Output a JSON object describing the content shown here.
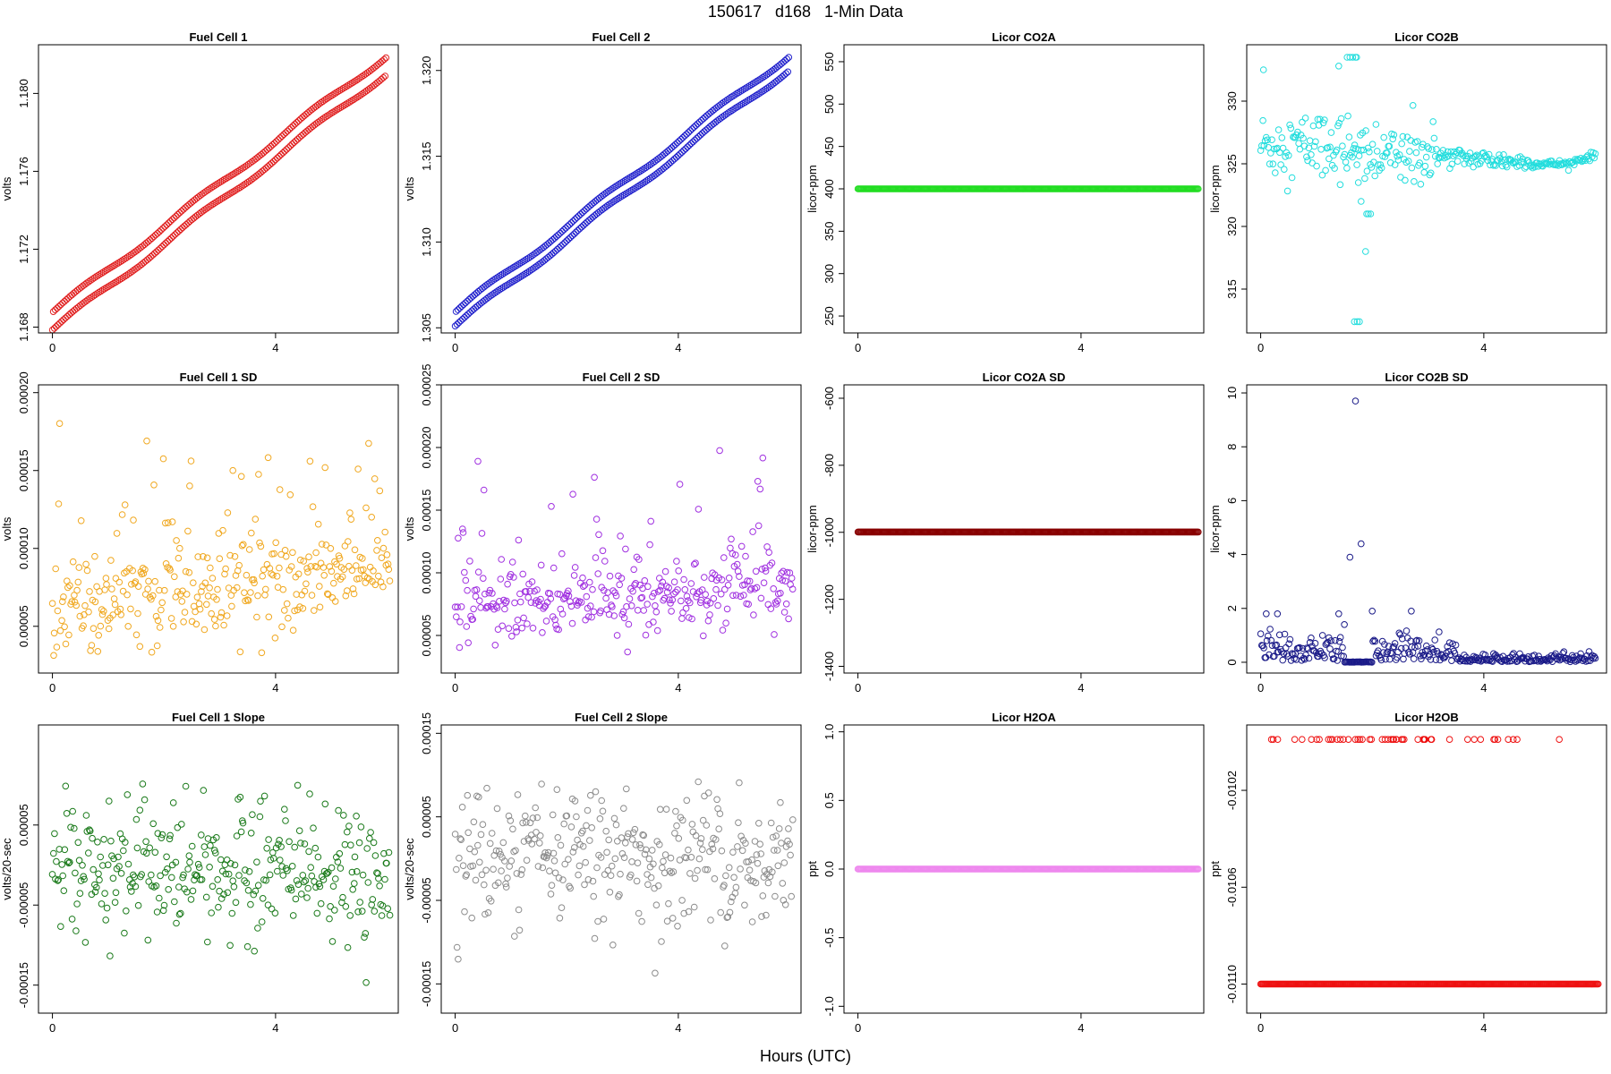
{
  "figure": {
    "title": "150617   d168   1-Min Data",
    "xlabel": "Hours (UTC)"
  },
  "chart_data": [
    {
      "id": "fc1",
      "type": "scatter",
      "title": "Fuel Cell 1",
      "ylabel": "volts",
      "color": "#e02020",
      "xlim": [
        -0.25,
        6.2
      ],
      "xticks": [
        0,
        4
      ],
      "ylim": [
        1.1677,
        1.1825
      ],
      "yticks": [
        1.168,
        1.172,
        1.176,
        1.18
      ],
      "yticklabels": [
        "1.168",
        "1.172",
        "1.176",
        "1.180"
      ],
      "pattern": "double-trend",
      "params": {
        "x0": 0.0,
        "x1": 5.98,
        "n": 360,
        "y0": 1.1683,
        "y1": 1.1815,
        "sep": 0.0009
      },
      "grid": false
    },
    {
      "id": "fc2",
      "type": "scatter",
      "title": "Fuel Cell 2",
      "ylabel": "volts",
      "color": "#2222cc",
      "xlim": [
        -0.25,
        6.2
      ],
      "xticks": [
        0,
        4
      ],
      "ylim": [
        1.3047,
        1.3215
      ],
      "yticks": [
        1.305,
        1.31,
        1.315,
        1.32
      ],
      "yticklabels": [
        "1.305",
        "1.310",
        "1.315",
        "1.320"
      ],
      "pattern": "double-trend",
      "params": {
        "x0": 0.0,
        "x1": 5.98,
        "n": 360,
        "y0": 1.3055,
        "y1": 1.3205,
        "sep": 0.0008
      },
      "grid": false
    },
    {
      "id": "co2a",
      "type": "scatter",
      "title": "Licor CO2A",
      "ylabel": "licor-ppm",
      "color": "#22dd22",
      "xlim": [
        -0.25,
        6.2
      ],
      "xticks": [
        0,
        4
      ],
      "ylim": [
        230,
        570
      ],
      "yticks": [
        250,
        300,
        350,
        400,
        450,
        500,
        550
      ],
      "yticklabels": [
        "250",
        "300",
        "350",
        "400",
        "450",
        "500",
        "550"
      ],
      "pattern": "constant",
      "params": {
        "x0": 0.0,
        "x1": 6.1,
        "n": 360,
        "y": 400
      },
      "grid": false
    },
    {
      "id": "co2b",
      "type": "scatter",
      "title": "Licor CO2B",
      "ylabel": "licor-ppm",
      "color": "#22dddd",
      "xlim": [
        -0.25,
        6.2
      ],
      "xticks": [
        0,
        4
      ],
      "ylim": [
        311.5,
        334.5
      ],
      "yticks": [
        315,
        320,
        325,
        330
      ],
      "yticklabels": [
        "315",
        "320",
        "325",
        "330"
      ],
      "pattern": "co2b",
      "params": {
        "n": 300
      },
      "grid": false
    },
    {
      "id": "fc1sd",
      "type": "scatter",
      "title": "Fuel Cell 1 SD",
      "ylabel": "volts",
      "color": "#f0a820",
      "xlim": [
        -0.25,
        6.2
      ],
      "xticks": [
        0,
        4
      ],
      "ylim": [
        2e-05,
        0.000205
      ],
      "yticks": [
        5e-05,
        0.0001,
        0.00015,
        0.0002
      ],
      "yticklabels": [
        "0.00005",
        "0.00010",
        "0.00015",
        "0.00020"
      ],
      "pattern": "noise",
      "params": {
        "x0": 0.0,
        "x1": 6.05,
        "n": 330,
        "base": 6e-05,
        "trend": 4e-06,
        "spread": 1.4e-05,
        "spikes": 0.22,
        "spikeAmp": 4.5e-05,
        "ymin": 2.8e-05
      },
      "grid": false
    },
    {
      "id": "fc2sd",
      "type": "scatter",
      "title": "Fuel Cell 2 SD",
      "ylabel": "volts",
      "color": "#a030e0",
      "xlim": [
        -0.25,
        6.2
      ],
      "xticks": [
        0,
        4
      ],
      "ylim": [
        2e-05,
        0.00025
      ],
      "yticks": [
        5e-05,
        0.0001,
        0.00015,
        0.0002,
        0.00025
      ],
      "yticklabels": [
        "0.00005",
        "0.00010",
        "0.00015",
        "0.00020",
        "0.00025"
      ],
      "pattern": "noise",
      "params": {
        "x0": 0.0,
        "x1": 6.05,
        "n": 330,
        "base": 7e-05,
        "trend": 3e-06,
        "spread": 1.5e-05,
        "spikes": 0.22,
        "spikeAmp": 5e-05,
        "ymin": 3e-05
      },
      "grid": false
    },
    {
      "id": "co2asd",
      "type": "scatter",
      "title": "Licor CO2A SD",
      "ylabel": "licor-ppm",
      "color": "#880000",
      "xlim": [
        -0.25,
        6.2
      ],
      "xticks": [
        0,
        4
      ],
      "ylim": [
        -1420,
        -560
      ],
      "yticks": [
        -1400,
        -1200,
        -1000,
        -800,
        -600
      ],
      "yticklabels": [
        "-1400",
        "-1200",
        "-1000",
        "-800",
        "-600"
      ],
      "pattern": "constant",
      "params": {
        "x0": 0.0,
        "x1": 6.1,
        "n": 360,
        "y": -999
      },
      "grid": false
    },
    {
      "id": "co2bsd",
      "type": "scatter",
      "title": "Licor CO2B SD",
      "ylabel": "licor-ppm",
      "color": "#1a1a88",
      "xlim": [
        -0.25,
        6.2
      ],
      "xticks": [
        0,
        4
      ],
      "ylim": [
        -0.4,
        10.3
      ],
      "yticks": [
        0,
        2,
        4,
        6,
        8,
        10
      ],
      "yticklabels": [
        "0",
        "2",
        "4",
        "6",
        "8",
        "10"
      ],
      "pattern": "co2bsd",
      "params": {
        "n": 320
      },
      "grid": false
    },
    {
      "id": "fc1slope",
      "type": "scatter",
      "title": "Fuel Cell 1 Slope",
      "ylabel": "volts/20-sec",
      "color": "#1a7a1a",
      "xlim": [
        -0.25,
        6.2
      ],
      "xticks": [
        0,
        4
      ],
      "ylim": [
        -0.000185,
        0.000175
      ],
      "yticks": [
        -0.00015,
        -5e-05,
        5e-05
      ],
      "yticklabels": [
        "-0.00015",
        "-0.00005",
        "0.00005"
      ],
      "pattern": "noise",
      "params": {
        "x0": 0.0,
        "x1": 6.05,
        "n": 330,
        "base": 0.0,
        "trend": -2e-06,
        "spread": 3.8e-05,
        "spikes": 0.05,
        "spikeAmp": 6e-05,
        "ymin": -0.000175
      },
      "grid": false
    },
    {
      "id": "fc2slope",
      "type": "scatter",
      "title": "Fuel Cell 2 Slope",
      "ylabel": "volts/20-sec",
      "color": "#8c8c8c",
      "xlim": [
        -0.25,
        6.2
      ],
      "xticks": [
        0,
        4
      ],
      "ylim": [
        -0.000185,
        0.00016
      ],
      "yticks": [
        -0.00015,
        -5e-05,
        5e-05,
        0.00015
      ],
      "yticklabels": [
        "-0.00015",
        "-0.00005",
        "0.00005",
        "0.00015"
      ],
      "pattern": "noise",
      "params": {
        "x0": 0.0,
        "x1": 6.05,
        "n": 330,
        "base": 0.0,
        "trend": 0.0,
        "spread": 4e-05,
        "spikes": 0.05,
        "spikeAmp": 6e-05,
        "ymin": -0.000175
      },
      "grid": false
    },
    {
      "id": "h2oa",
      "type": "scatter",
      "title": "Licor H2OA",
      "ylabel": "ppt",
      "color": "#ee88ee",
      "xlim": [
        -0.25,
        6.2
      ],
      "xticks": [
        0,
        4
      ],
      "ylim": [
        -1.05,
        1.05
      ],
      "yticks": [
        -1.0,
        -0.5,
        0.0,
        0.5,
        1.0
      ],
      "yticklabels": [
        "-1.0",
        "-0.5",
        "0.0",
        "0.5",
        "1.0"
      ],
      "pattern": "constant",
      "params": {
        "x0": 0.0,
        "x1": 6.1,
        "n": 360,
        "y": 0.0
      },
      "grid": false
    },
    {
      "id": "h2ob",
      "type": "scatter",
      "title": "Licor H2OB",
      "ylabel": "ppt",
      "color": "#ee1111",
      "xlim": [
        -0.25,
        6.2
      ],
      "xticks": [
        0,
        4
      ],
      "ylim": [
        -0.01112,
        -0.00993
      ],
      "yticks": [
        -0.011,
        -0.0106,
        -0.0102
      ],
      "yticklabels": [
        "-0.0110",
        "-0.0106",
        "-0.0102"
      ],
      "pattern": "h2ob",
      "params": {
        "n": 360,
        "hi": -0.00999,
        "lo": -0.011
      },
      "grid": false
    }
  ]
}
